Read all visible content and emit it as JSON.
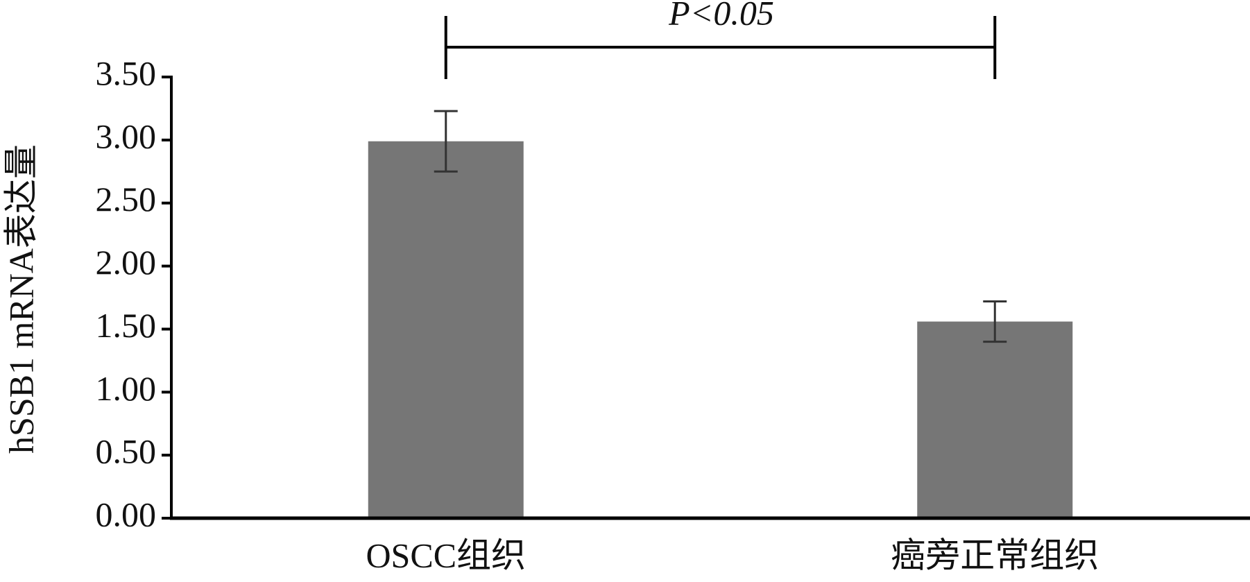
{
  "chart_data": {
    "type": "bar",
    "y_label": "hSSB1 mRNA表达量",
    "annotation": "P<0.05",
    "categories": [
      "OSCC组织",
      "癌旁正常组织"
    ],
    "values": [
      2.99,
      1.56
    ],
    "errors": [
      0.24,
      0.16
    ],
    "color": "#767676",
    "ylim": [
      0,
      3.5
    ],
    "yticks": [
      {
        "value": 0,
        "label": "0.00"
      },
      {
        "value": 0.5,
        "label": "0.50"
      },
      {
        "value": 1,
        "label": "1.00"
      },
      {
        "value": 1.5,
        "label": "1.50"
      },
      {
        "value": 2,
        "label": "2.00"
      },
      {
        "value": 2.5,
        "label": "2.50"
      },
      {
        "value": 3,
        "label": "3.00"
      },
      {
        "value": 3.5,
        "label": "3.50"
      }
    ],
    "grid": false
  }
}
